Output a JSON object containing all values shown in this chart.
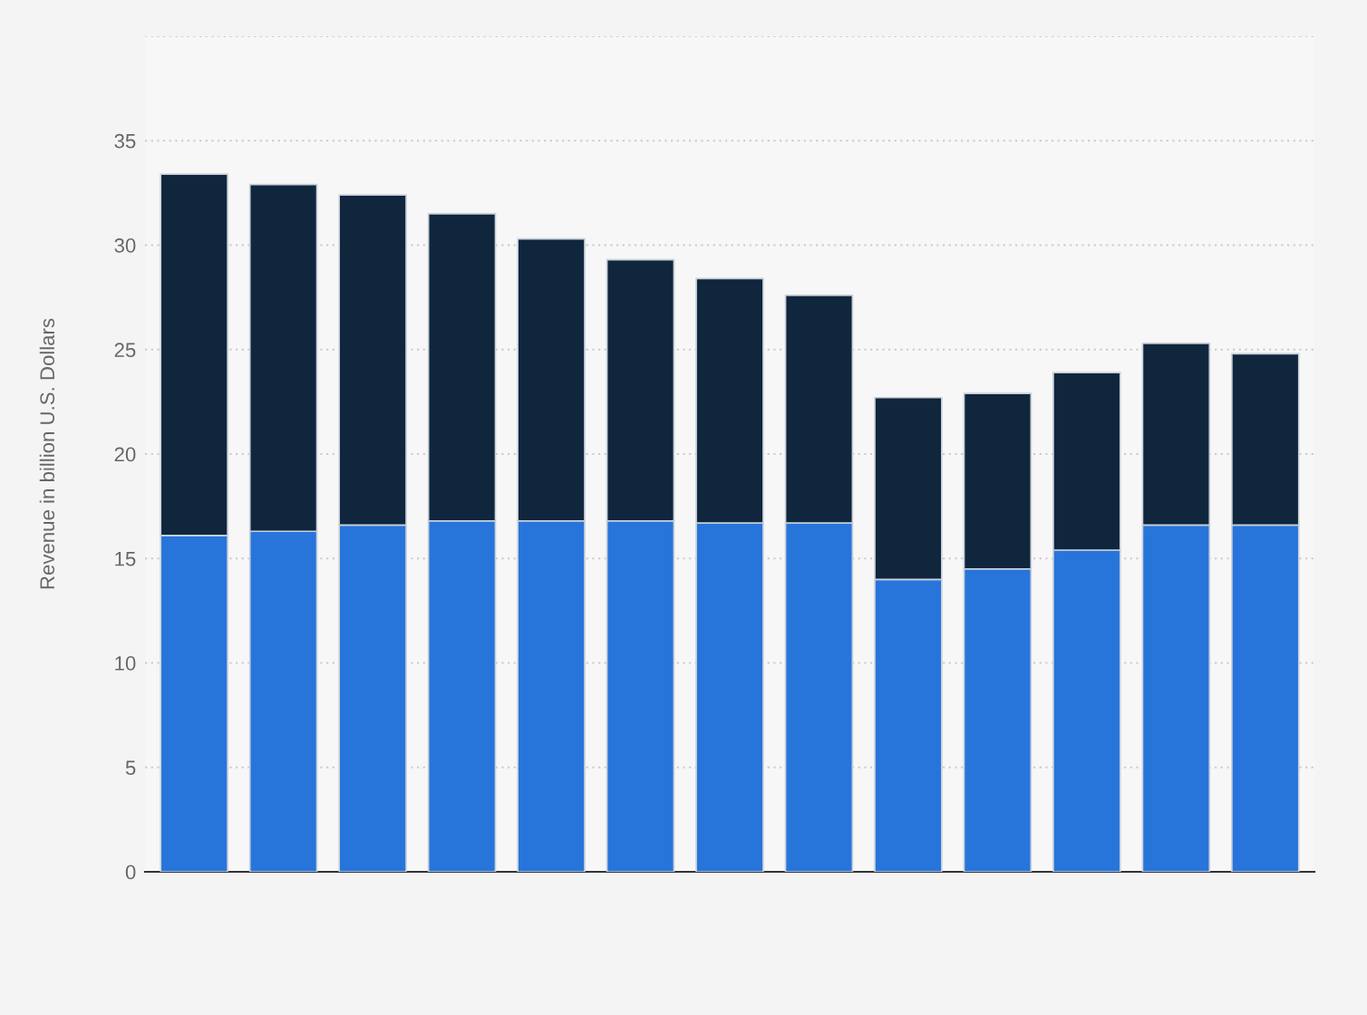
{
  "chart_data": {
    "type": "bar",
    "stacked": true,
    "ylabel": "Revenue in billion U.S. Dollars",
    "categories": [
      null,
      null,
      null,
      null,
      null,
      null,
      null,
      null,
      null,
      null,
      null,
      null,
      null
    ],
    "series": [
      {
        "color": "#2775db",
        "values": [
          16.1,
          16.3,
          16.6,
          16.8,
          16.8,
          16.8,
          16.7,
          16.7,
          14.0,
          14.5,
          15.4,
          16.6,
          16.6
        ]
      },
      {
        "color": "#10263d",
        "values": [
          17.3,
          16.6,
          15.8,
          14.7,
          13.5,
          12.5,
          11.7,
          10.9,
          8.7,
          8.4,
          8.5,
          8.7,
          8.2
        ]
      }
    ],
    "ylim": [
      0,
      40
    ],
    "yticks": [
      0,
      5,
      10,
      15,
      20,
      25,
      30,
      35,
      {
        "value": 40,
        "label": null
      }
    ],
    "grid": "y",
    "tick_labels": "y"
  }
}
